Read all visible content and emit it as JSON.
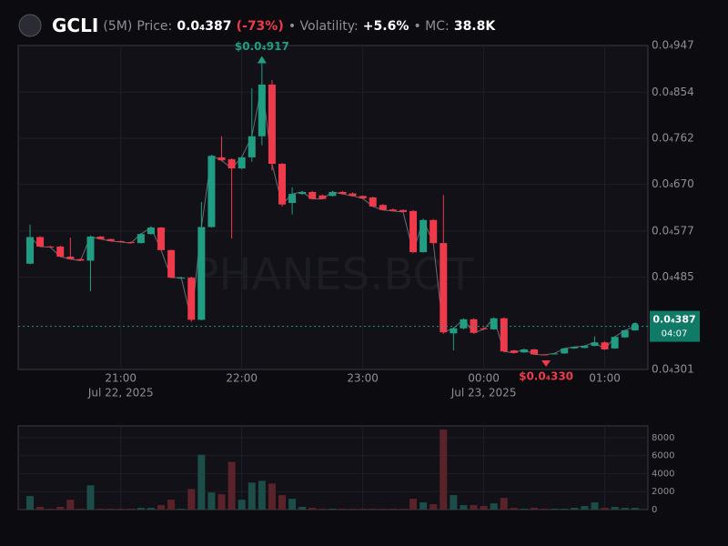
{
  "header": {
    "symbol": "GCLI",
    "interval": "(5M)",
    "price_caption": "Price:",
    "price": "0.0₄387",
    "change": "(-73%)",
    "volatility_caption": "• Volatility:",
    "volatility": "+5.6%",
    "mc_caption": "• MC:",
    "mc": "38.8K"
  },
  "chart_data": [
    {
      "type": "candlestick",
      "categories": [
        null,
        null,
        null,
        null,
        null,
        null,
        null,
        null,
        null,
        "21:00",
        null,
        null,
        null,
        null,
        null,
        null,
        null,
        null,
        null,
        null,
        null,
        "22:00",
        null,
        null,
        null,
        null,
        null,
        null,
        null,
        null,
        null,
        null,
        null,
        "23:00",
        null,
        null,
        null,
        null,
        null,
        null,
        null,
        null,
        null,
        null,
        null,
        "00:00",
        null,
        null,
        null,
        null,
        null,
        null,
        null,
        null,
        null,
        null,
        null,
        "01:00",
        null,
        null,
        null
      ],
      "date_labels": [
        null,
        null,
        null,
        null,
        null,
        null,
        null,
        null,
        null,
        "Jul 22, 2025",
        null,
        null,
        null,
        null,
        null,
        null,
        null,
        null,
        null,
        null,
        null,
        null,
        null,
        null,
        null,
        null,
        null,
        null,
        null,
        null,
        null,
        null,
        null,
        null,
        null,
        null,
        null,
        null,
        null,
        null,
        null,
        null,
        null,
        null,
        null,
        "Jul 23, 2025",
        null,
        null,
        null,
        null,
        null,
        null,
        null,
        null,
        null,
        null,
        null,
        null,
        null,
        null,
        null
      ],
      "open": [
        5.12e-05,
        5.65e-05,
        5.46e-05,
        5.46e-05,
        5.26e-05,
        5.21e-05,
        5.18e-05,
        5.66e-05,
        5.61e-05,
        5.57e-05,
        5.55e-05,
        5.53e-05,
        5.71e-05,
        5.84e-05,
        5.39e-05,
        4.84e-05,
        4.84e-05,
        4e-05,
        5.85e-05,
        7.24e-05,
        7.2e-05,
        7.02e-05,
        7.24e-05,
        7.66e-05,
        8.69e-05,
        7.11e-05,
        6.33e-05,
        6.51e-05,
        6.55e-05,
        6.48e-05,
        6.47e-05,
        6.55e-05,
        6.52e-05,
        6.47e-05,
        6.44e-05,
        6.29e-05,
        6.2e-05,
        6.19e-05,
        6.17e-05,
        5.35e-05,
        5.99e-05,
        5.53e-05,
        3.73e-05,
        3.83e-05,
        4.01e-05,
        3.83e-05,
        3.81e-05,
        4.03e-05,
        3.39e-05,
        3.35e-05,
        3.41e-05,
        3.31e-05,
        3.31e-05,
        3.33e-05,
        3.43e-05,
        3.44e-05,
        3.48e-05,
        3.55e-05,
        3.43e-05,
        3.65e-05,
        3.79e-05
      ],
      "high": [
        5.9e-05,
        5.67e-05,
        5.48e-05,
        5.48e-05,
        5.64e-05,
        5.22e-05,
        5.68e-05,
        5.67e-05,
        5.62e-05,
        5.58e-05,
        5.56e-05,
        5.73e-05,
        5.87e-05,
        5.85e-05,
        5.4e-05,
        4.86e-05,
        4.86e-05,
        6.35e-05,
        7.29e-05,
        7.66e-05,
        7.22e-05,
        7.26e-05,
        8.62e-05,
        9.17e-05,
        8.78e-05,
        7.13e-05,
        6.64e-05,
        6.57e-05,
        6.57e-05,
        6.5e-05,
        6.57e-05,
        6.57e-05,
        6.54e-05,
        6.48e-05,
        6.46e-05,
        6.31e-05,
        6.22e-05,
        6.2e-05,
        6.19e-05,
        6.02e-05,
        6.01e-05,
        6.49e-05,
        3.85e-05,
        4.03e-05,
        4.03e-05,
        3.85e-05,
        4.05e-05,
        4.05e-05,
        3.4e-05,
        3.42e-05,
        3.42e-05,
        3.32e-05,
        3.34e-05,
        3.44e-05,
        3.47e-05,
        3.49e-05,
        3.67e-05,
        3.57e-05,
        3.67e-05,
        3.8e-05,
        3.89e-05
      ],
      "low": [
        5.11e-05,
        5.45e-05,
        5.44e-05,
        5.25e-05,
        5.2e-05,
        5.17e-05,
        4.57e-05,
        5.6e-05,
        5.56e-05,
        5.54e-05,
        5.52e-05,
        5.52e-05,
        5.7e-05,
        5.38e-05,
        4.83e-05,
        4.82e-05,
        3.96e-05,
        3.99e-05,
        5.84e-05,
        7.16e-05,
        5.62e-05,
        7e-05,
        7.15e-05,
        7.48e-05,
        6.98e-05,
        6.26e-05,
        6.1e-05,
        6.49e-05,
        6.4e-05,
        6.4e-05,
        6.46e-05,
        6.5e-05,
        6.46e-05,
        6.41e-05,
        6.25e-05,
        6.18e-05,
        6.16e-05,
        6.14e-05,
        5.33e-05,
        5.34e-05,
        5.51e-05,
        3.72e-05,
        3.39e-05,
        3.81e-05,
        3.72e-05,
        3.8e-05,
        3.8e-05,
        3.35e-05,
        3.33e-05,
        3.34e-05,
        3.31e-05,
        3.3e-05,
        3.31e-05,
        3.32e-05,
        3.42e-05,
        3.43e-05,
        3.47e-05,
        3.4e-05,
        3.42e-05,
        3.64e-05,
        3.78e-05
      ],
      "close": [
        5.65e-05,
        5.46e-05,
        5.45e-05,
        5.26e-05,
        5.21e-05,
        5.18e-05,
        5.66e-05,
        5.61e-05,
        5.57e-05,
        5.55e-05,
        5.53e-05,
        5.71e-05,
        5.84e-05,
        5.39e-05,
        4.84e-05,
        4.84e-05,
        4e-05,
        5.85e-05,
        7.27e-05,
        7.18e-05,
        7.02e-05,
        7.24e-05,
        7.66e-05,
        8.69e-05,
        7.11e-05,
        6.3e-05,
        6.51e-05,
        6.55e-05,
        6.41e-05,
        6.41e-05,
        6.55e-05,
        6.51e-05,
        6.47e-05,
        6.42e-05,
        6.26e-05,
        6.19e-05,
        6.17e-05,
        6.15e-05,
        5.35e-05,
        5.99e-05,
        5.53e-05,
        3.75e-05,
        3.83e-05,
        4.01e-05,
        3.74e-05,
        3.81e-05,
        4.03e-05,
        3.37e-05,
        3.34e-05,
        3.41e-05,
        3.31e-05,
        3.3e-05,
        3.33e-05,
        3.43e-05,
        3.46e-05,
        3.48e-05,
        3.55e-05,
        3.41e-05,
        3.66e-05,
        3.79e-05,
        3.87e-05
      ],
      "up_color": "#1f9e84",
      "down_color": "#ef3a4b",
      "line_color": "#6b6b73",
      "ylim": [
        3.01e-05,
        9.47e-05
      ],
      "yticks": [
        {
          "value": 3.01e-05,
          "label": "0.0₄301"
        },
        {
          "value": 4.85e-05,
          "label": "0.0₄485"
        },
        {
          "value": 5.77e-05,
          "label": "0.0₄577"
        },
        {
          "value": 6.7e-05,
          "label": "0.0₄670"
        },
        {
          "value": 7.62e-05,
          "label": "0.0₄762"
        },
        {
          "value": 8.54e-05,
          "label": "0.0₄854"
        },
        {
          "value": 9.47e-05,
          "label": "0.0₄947"
        }
      ],
      "grid": true,
      "watermark": "PHANES.BOT",
      "last_price_label": "0.0₄387",
      "countdown": "04:07",
      "max_label": "$0.0₄917",
      "min_label": "$0.0₄330"
    },
    {
      "type": "bar",
      "values": [
        1500,
        300,
        100,
        300,
        1100,
        100,
        2700,
        100,
        100,
        100,
        100,
        200,
        200,
        500,
        1100,
        100,
        2300,
        6100,
        1900,
        1700,
        5300,
        1100,
        3000,
        3200,
        2900,
        1600,
        1200,
        300,
        200,
        100,
        100,
        100,
        100,
        100,
        100,
        100,
        100,
        100,
        1200,
        800,
        600,
        8900,
        1600,
        500,
        500,
        400,
        700,
        1300,
        200,
        100,
        200,
        100,
        100,
        100,
        200,
        400,
        800,
        200,
        300,
        200,
        200
      ],
      "up_color": "#1d4d48",
      "down_color": "#5a2329",
      "ylim": [
        0,
        9300
      ],
      "yticks": [
        0,
        2000,
        4000,
        6000,
        8000
      ],
      "grid": true
    }
  ]
}
